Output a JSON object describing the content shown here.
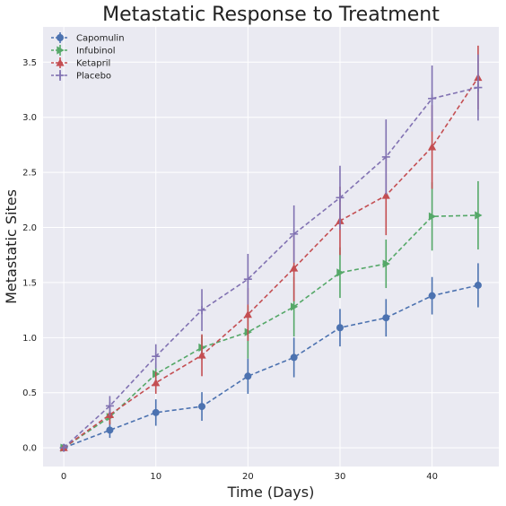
{
  "chart_data": {
    "type": "line",
    "title": "Metastatic Response to Treatment",
    "xlabel": "Time (Days)",
    "ylabel": "Metastatic Sites",
    "x": [
      0,
      5,
      10,
      15,
      20,
      25,
      30,
      35,
      40,
      45
    ],
    "xlim": [
      -2.25,
      47.25
    ],
    "ylim": [
      -0.17,
      3.82
    ],
    "xticks": [
      "0",
      "10",
      "20",
      "30",
      "40"
    ],
    "yticks": [
      "0.0",
      "0.5",
      "1.0",
      "1.5",
      "2.0",
      "2.5",
      "3.0",
      "3.5"
    ],
    "grid": true,
    "legend_position": "top-left",
    "series": [
      {
        "name": "Capomulin",
        "color": "#4c72b0",
        "marker": "circle",
        "values": [
          0.0,
          0.16,
          0.32,
          0.375,
          0.65,
          0.82,
          1.09,
          1.18,
          1.38,
          1.475
        ],
        "errors": [
          0.0,
          0.07,
          0.12,
          0.13,
          0.16,
          0.18,
          0.17,
          0.17,
          0.17,
          0.2
        ]
      },
      {
        "name": "Infubinol",
        "color": "#55a868",
        "marker": "triangle-right",
        "values": [
          0.0,
          0.28,
          0.67,
          0.91,
          1.05,
          1.28,
          1.59,
          1.67,
          2.1,
          2.11
        ],
        "errors": [
          0.0,
          0.06,
          0.1,
          0.11,
          0.24,
          0.27,
          0.23,
          0.22,
          0.31,
          0.31
        ]
      },
      {
        "name": "Ketapril",
        "color": "#c44e52",
        "marker": "triangle-up",
        "values": [
          0.0,
          0.3,
          0.59,
          0.84,
          1.21,
          1.63,
          2.06,
          2.29,
          2.73,
          3.36
        ],
        "errors": [
          0.0,
          0.09,
          0.1,
          0.19,
          0.24,
          0.3,
          0.31,
          0.36,
          0.38,
          0.29
        ]
      },
      {
        "name": "Placebo",
        "color": "#8172b2",
        "marker": "plus",
        "values": [
          0.0,
          0.38,
          0.83,
          1.25,
          1.53,
          1.94,
          2.27,
          2.64,
          3.17,
          3.27
        ],
        "errors": [
          0.0,
          0.09,
          0.11,
          0.19,
          0.23,
          0.26,
          0.29,
          0.34,
          0.3,
          0.3
        ]
      }
    ]
  }
}
